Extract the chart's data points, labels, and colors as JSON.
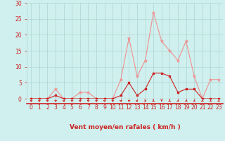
{
  "x": [
    0,
    1,
    2,
    3,
    4,
    5,
    6,
    7,
    8,
    9,
    10,
    11,
    12,
    13,
    14,
    15,
    16,
    17,
    18,
    19,
    20,
    21,
    22,
    23
  ],
  "rafales": [
    0,
    0,
    0,
    3,
    0,
    0,
    2,
    2,
    0,
    0,
    0,
    6,
    19,
    7,
    12,
    27,
    18,
    15,
    12,
    18,
    7,
    0,
    6,
    6
  ],
  "moyen": [
    0,
    0,
    0,
    1,
    0,
    0,
    0,
    0,
    0,
    0,
    0,
    1,
    5,
    1,
    3,
    8,
    8,
    7,
    2,
    3,
    3,
    0,
    0,
    0
  ],
  "bg_color": "#cff0ee",
  "grid_color": "#aed4d0",
  "axis_color": "#cc2222",
  "line_color_rafales": "#f09090",
  "line_color_moyen": "#cc2222",
  "xlabel": "Vent moyen/en rafales ( km/h )",
  "ylim": [
    0,
    30
  ],
  "yticks": [
    0,
    5,
    10,
    15,
    20,
    25,
    30
  ],
  "xticks": [
    0,
    1,
    2,
    3,
    4,
    5,
    6,
    7,
    8,
    9,
    10,
    11,
    12,
    13,
    14,
    15,
    16,
    17,
    18,
    19,
    20,
    21,
    22,
    23
  ],
  "tick_fontsize": 5.5,
  "xlabel_fontsize": 6.5,
  "arrow_angles_deg": [
    225,
    225,
    225,
    225,
    225,
    225,
    225,
    225,
    225,
    225,
    225,
    225,
    225,
    270,
    45,
    45,
    0,
    45,
    315,
    315,
    315,
    315,
    315,
    315
  ]
}
